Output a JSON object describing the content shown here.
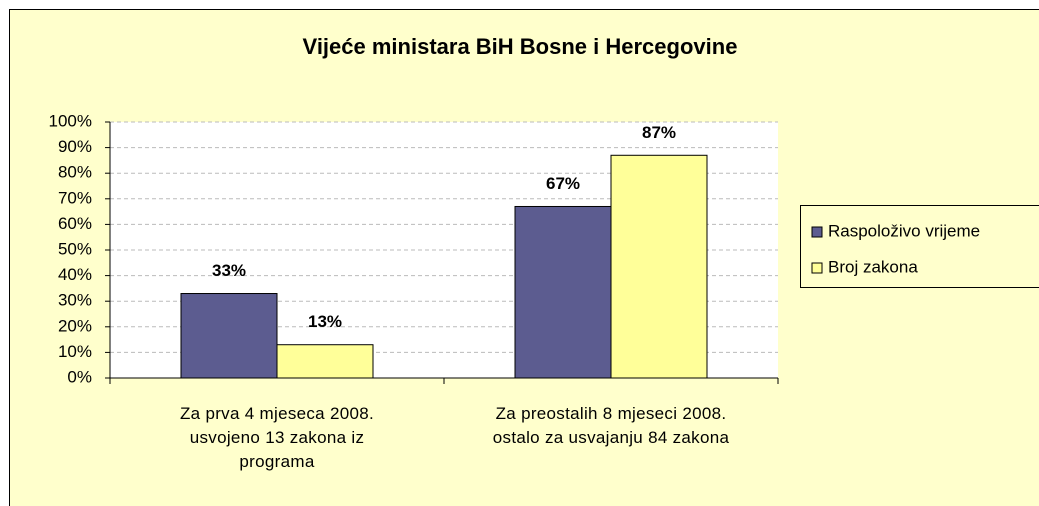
{
  "chart_data": {
    "type": "bar",
    "title": "Vijeće ministara BiH Bosne i Hercegovine",
    "categories": [
      "Za prva 4 mjeseca 2008.\nusvojeno 13 zakona iz\nprograma",
      "Za preostalih 8 mjeseci 2008.\nostalo za usvajanju 84 zakona"
    ],
    "series": [
      {
        "name": "Raspoloživo vrijeme",
        "color": "#5c5c90",
        "values": [
          33,
          67
        ],
        "value_labels": [
          "33%",
          "67%"
        ]
      },
      {
        "name": "Broj zakona",
        "color": "#ffff99",
        "values": [
          13,
          87
        ],
        "value_labels": [
          "13%",
          "87%"
        ]
      }
    ],
    "ylim": [
      0,
      100
    ],
    "yticks": [
      {
        "value": 0,
        "label": "0%"
      },
      {
        "value": 10,
        "label": "10%"
      },
      {
        "value": 20,
        "label": "20%"
      },
      {
        "value": 30,
        "label": "30%"
      },
      {
        "value": 40,
        "label": "40%"
      },
      {
        "value": 50,
        "label": "50%"
      },
      {
        "value": 60,
        "label": "60%"
      },
      {
        "value": 70,
        "label": "70%"
      },
      {
        "value": 80,
        "label": "80%"
      },
      {
        "value": 90,
        "label": "90%"
      },
      {
        "value": 100,
        "label": "100%"
      }
    ],
    "grid": true,
    "legend": "right"
  }
}
